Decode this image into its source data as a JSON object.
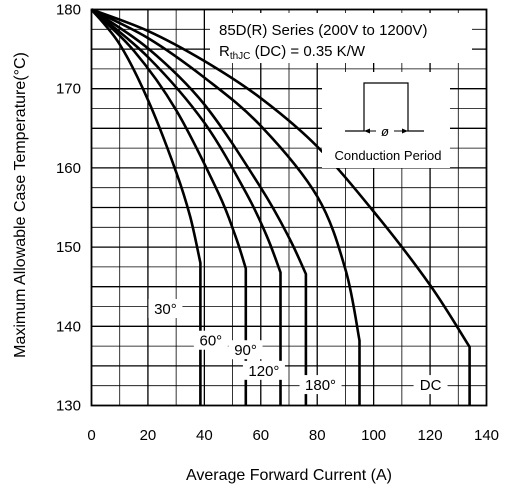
{
  "chart_data": {
    "type": "line",
    "title": "85D(R) Series (200V to 1200V)",
    "subtitle_main": "R",
    "subtitle_sub": "thJC",
    "subtitle_rest": " (DC) = 0.35 K/W",
    "xlabel": "Average Forward Current (A)",
    "ylabel": "Maximum Allowable Case Temperature(°C)",
    "xlim": [
      0,
      140
    ],
    "ylim": [
      130,
      180
    ],
    "x_ticks": [
      "0",
      "20",
      "40",
      "60",
      "80",
      "100",
      "120",
      "140"
    ],
    "y_ticks": [
      "130",
      "140",
      "150",
      "160",
      "170",
      "180"
    ],
    "grid": true,
    "inset_label": "Conduction Period",
    "inset_symbol": "ø",
    "series": [
      {
        "name": "30°",
        "x": [
          0,
          10,
          20,
          30,
          35,
          38.6,
          38.6
        ],
        "y": [
          180,
          175.6,
          168.6,
          159.5,
          153.8,
          148,
          130
        ]
      },
      {
        "name": "60°",
        "x": [
          0,
          15,
          30,
          45,
          51,
          54.7,
          54.7
        ],
        "y": [
          180,
          174.8,
          167.3,
          156.8,
          151.4,
          147.3,
          130
        ]
      },
      {
        "name": "90°",
        "x": [
          0,
          20,
          40,
          55,
          62,
          67,
          67
        ],
        "y": [
          180,
          174,
          165.7,
          156.7,
          151.5,
          146.8,
          130
        ]
      },
      {
        "name": "120°",
        "x": [
          0,
          20,
          40,
          60,
          70,
          76,
          76
        ],
        "y": [
          180,
          175.1,
          168,
          157.5,
          151.2,
          146.6,
          130
        ]
      },
      {
        "name": "180°",
        "x": [
          0,
          20,
          40,
          60,
          80,
          90,
          95,
          95
        ],
        "y": [
          180,
          176.4,
          171.4,
          165.3,
          156.4,
          147.2,
          138.2,
          130
        ]
      },
      {
        "name": "DC",
        "x": [
          0,
          20,
          40,
          60,
          80,
          100,
          120,
          134,
          134
        ],
        "y": [
          180,
          177.3,
          173.5,
          168.8,
          162.7,
          154.5,
          145.2,
          137.4,
          130
        ]
      }
    ]
  }
}
